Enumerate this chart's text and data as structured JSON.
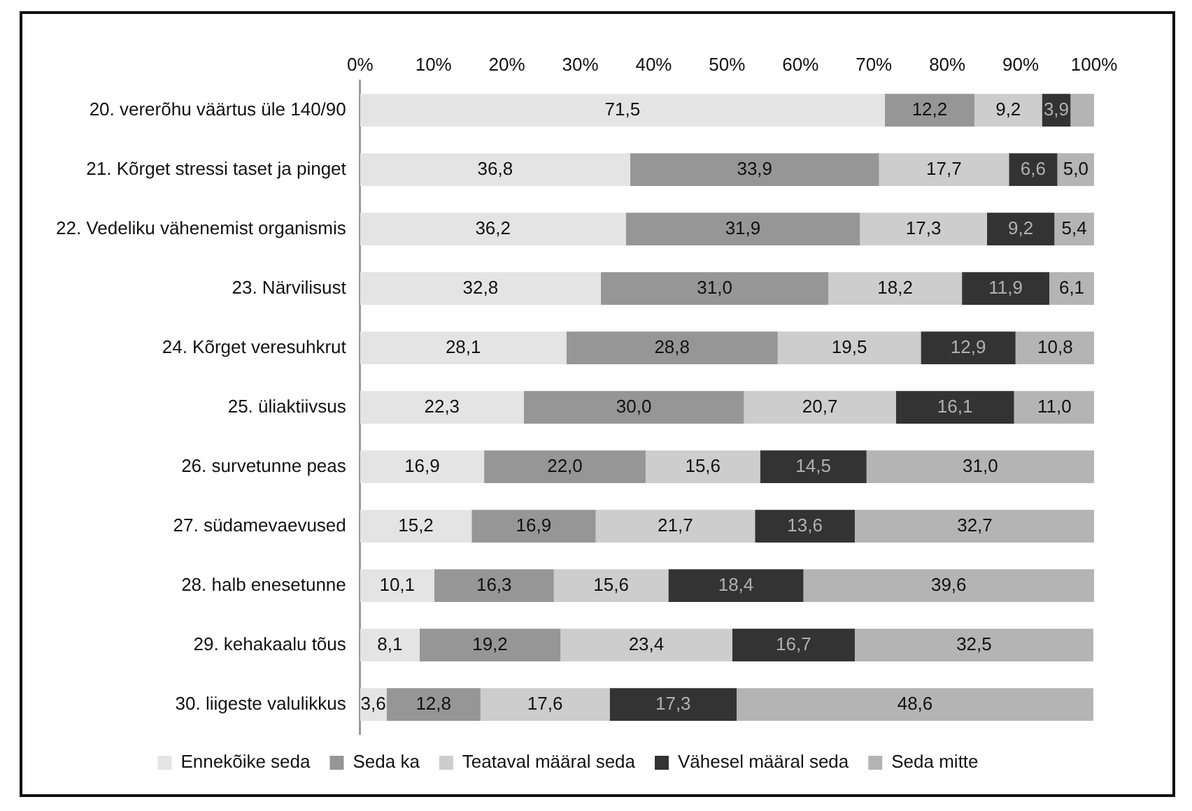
{
  "chart_data": {
    "type": "bar",
    "orientation": "horizontal",
    "stacked": true,
    "grid": false,
    "legend": "bottom",
    "categories": [
      "20. vererõhu väärtus üle 140/90",
      "21. Kõrget stressi taset ja pinget",
      "22. Vedeliku vähenemist organismis",
      "23. Närvilisust",
      "24. Kõrget veresuhkrut",
      "25. üliaktiivsus",
      "26. survetunne peas",
      "27. südamevaevused",
      "28. halb enesetunne",
      "29. kehakaalu tõus",
      "30. liigeste valulikkus"
    ],
    "xlim": [
      0,
      100
    ],
    "xticks": [
      {
        "value": 0,
        "label": "0%"
      },
      {
        "value": 10,
        "label": "10%"
      },
      {
        "value": 20,
        "label": "20%"
      },
      {
        "value": 30,
        "label": "30%"
      },
      {
        "value": 40,
        "label": "40%"
      },
      {
        "value": 50,
        "label": "50%"
      },
      {
        "value": 60,
        "label": "60%"
      },
      {
        "value": 70,
        "label": "70%"
      },
      {
        "value": 80,
        "label": "80%"
      },
      {
        "value": 90,
        "label": "90%"
      },
      {
        "value": 100,
        "label": "100%"
      }
    ],
    "series": [
      {
        "name": "Ennekõike seda",
        "color": "#e4e4e4",
        "values": [
          71.5,
          36.8,
          36.2,
          32.8,
          28.1,
          22.3,
          16.9,
          15.2,
          10.1,
          8.1,
          3.6
        ],
        "value_labels": [
          "71,5",
          "36,8",
          "36,2",
          "32,8",
          "28,1",
          "22,3",
          "16,9",
          "15,2",
          "10,1",
          "8,1",
          "3,6"
        ]
      },
      {
        "name": "Seda ka",
        "color": "#969696",
        "values": [
          12.2,
          33.9,
          31.9,
          31.0,
          28.8,
          30.0,
          22.0,
          16.9,
          16.3,
          19.2,
          12.8
        ],
        "value_labels": [
          "12,2",
          "33,9",
          "31,9",
          "31,0",
          "28,8",
          "30,0",
          "22,0",
          "16,9",
          "16,3",
          "19,2",
          "12,8"
        ]
      },
      {
        "name": "Teataval määral seda",
        "color": "#cdcdcd",
        "values": [
          9.2,
          17.7,
          17.3,
          18.2,
          19.5,
          20.7,
          15.6,
          21.7,
          15.6,
          23.4,
          17.6
        ],
        "value_labels": [
          "9,2",
          "17,7",
          "17,3",
          "18,2",
          "19,5",
          "20,7",
          "15,6",
          "21,7",
          "15,6",
          "23,4",
          "17,6"
        ]
      },
      {
        "name": "Vähesel määral seda",
        "color": "#333333",
        "values": [
          3.9,
          6.6,
          9.2,
          11.9,
          12.9,
          16.1,
          14.5,
          13.6,
          18.4,
          16.7,
          17.3
        ],
        "value_labels": [
          "3,9",
          "6,6",
          "9,2",
          "11,9",
          "12,9",
          "16,1",
          "14,5",
          "13,6",
          "18,4",
          "16,7",
          "17,3"
        ]
      },
      {
        "name": "Seda mitte",
        "color": "#b4b4b4",
        "values": [
          3.2,
          5.0,
          5.4,
          6.1,
          10.8,
          11.0,
          31.0,
          32.7,
          39.6,
          32.5,
          48.6
        ],
        "value_labels": [
          null,
          "5,0",
          "5,4",
          "6,1",
          "10,8",
          "11,0",
          "31,0",
          "32,7",
          "39,6",
          "32,5",
          "48,6"
        ]
      }
    ]
  }
}
